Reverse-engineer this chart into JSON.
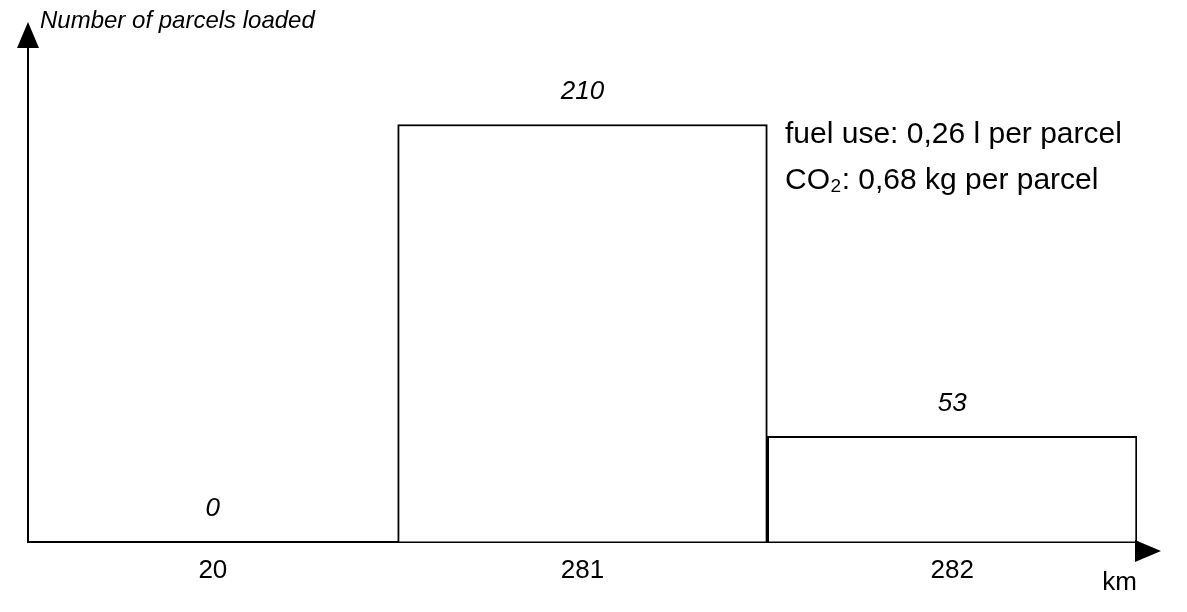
{
  "chart_data": {
    "type": "bar",
    "ylabel": "Number of parcels loaded",
    "xlabel": "km",
    "categories": [
      "20",
      "281",
      "282"
    ],
    "values": [
      0,
      210,
      53
    ],
    "color": "#ffffff",
    "data_labels": true,
    "grid": false,
    "legend": false,
    "annotations": [
      "fuel use: 0,26 l per parcel",
      "CO₂: 0,68 kg per parcel"
    ]
  }
}
